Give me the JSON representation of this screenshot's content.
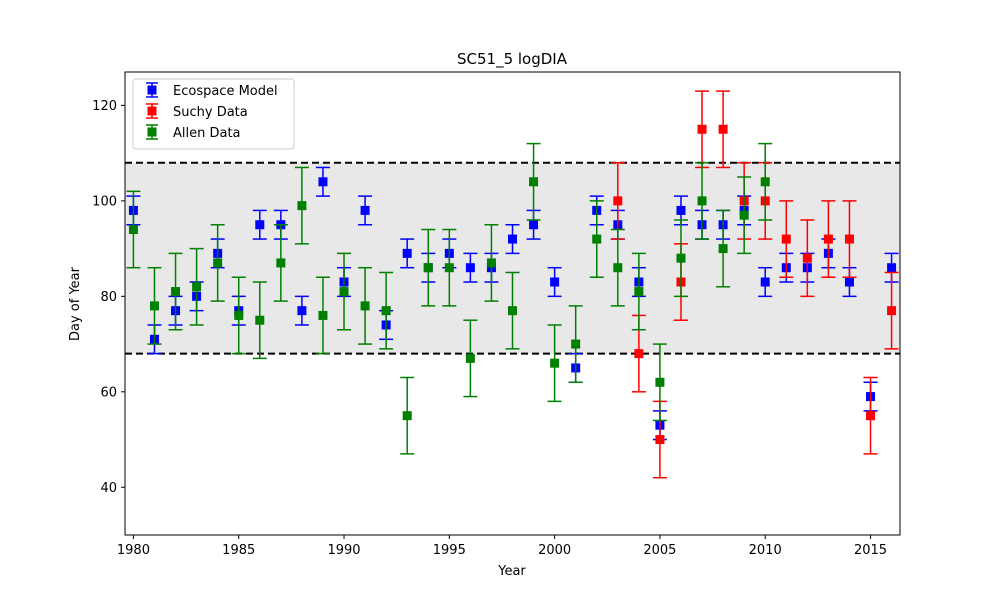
{
  "chart_data": {
    "type": "scatter",
    "title": "SC51_5 logDIA",
    "xlabel": "Year",
    "ylabel": "Day of Year",
    "xlim": [
      1979.6,
      2016.4
    ],
    "ylim": [
      30,
      127
    ],
    "xticks": [
      1980,
      1985,
      1990,
      1995,
      2000,
      2005,
      2010,
      2015
    ],
    "yticks": [
      40,
      60,
      80,
      100,
      120
    ],
    "band": {
      "low": 68,
      "high": 108,
      "color": "#e8e8e8"
    },
    "legend": {
      "position": "top-left"
    },
    "series": [
      {
        "name": "Ecospace Model",
        "color": "#0000ff",
        "points": [
          {
            "x": 1980,
            "y": 98,
            "err": 3
          },
          {
            "x": 1981,
            "y": 71,
            "err": 3
          },
          {
            "x": 1982,
            "y": 77,
            "err": 3
          },
          {
            "x": 1983,
            "y": 80,
            "err": 3
          },
          {
            "x": 1984,
            "y": 89,
            "err": 3
          },
          {
            "x": 1985,
            "y": 77,
            "err": 3
          },
          {
            "x": 1986,
            "y": 95,
            "err": 3
          },
          {
            "x": 1987,
            "y": 95,
            "err": 3
          },
          {
            "x": 1988,
            "y": 77,
            "err": 3
          },
          {
            "x": 1989,
            "y": 104,
            "err": 3
          },
          {
            "x": 1990,
            "y": 83,
            "err": 3
          },
          {
            "x": 1991,
            "y": 98,
            "err": 3
          },
          {
            "x": 1992,
            "y": 74,
            "err": 3
          },
          {
            "x": 1993,
            "y": 89,
            "err": 3
          },
          {
            "x": 1994,
            "y": 86,
            "err": 3
          },
          {
            "x": 1995,
            "y": 89,
            "err": 3
          },
          {
            "x": 1996,
            "y": 86,
            "err": 3
          },
          {
            "x": 1997,
            "y": 86,
            "err": 3
          },
          {
            "x": 1998,
            "y": 92,
            "err": 3
          },
          {
            "x": 1999,
            "y": 95,
            "err": 3
          },
          {
            "x": 2000,
            "y": 83,
            "err": 3
          },
          {
            "x": 2001,
            "y": 65,
            "err": 3
          },
          {
            "x": 2002,
            "y": 98,
            "err": 3
          },
          {
            "x": 2003,
            "y": 95,
            "err": 3
          },
          {
            "x": 2004,
            "y": 83,
            "err": 3
          },
          {
            "x": 2005,
            "y": 53,
            "err": 3
          },
          {
            "x": 2006,
            "y": 98,
            "err": 3
          },
          {
            "x": 2007,
            "y": 95,
            "err": 3
          },
          {
            "x": 2008,
            "y": 95,
            "err": 3
          },
          {
            "x": 2009,
            "y": 98,
            "err": 3
          },
          {
            "x": 2010,
            "y": 83,
            "err": 3
          },
          {
            "x": 2011,
            "y": 86,
            "err": 3
          },
          {
            "x": 2012,
            "y": 86,
            "err": 3
          },
          {
            "x": 2013,
            "y": 89,
            "err": 3
          },
          {
            "x": 2014,
            "y": 83,
            "err": 3
          },
          {
            "x": 2015,
            "y": 59,
            "err": 3
          },
          {
            "x": 2016,
            "y": 86,
            "err": 3
          }
        ]
      },
      {
        "name": "Suchy Data",
        "color": "#ff0000",
        "points": [
          {
            "x": 2003,
            "y": 100,
            "err": 8
          },
          {
            "x": 2004,
            "y": 68,
            "err": 8
          },
          {
            "x": 2005,
            "y": 50,
            "err": 8
          },
          {
            "x": 2006,
            "y": 83,
            "err": 8
          },
          {
            "x": 2007,
            "y": 115,
            "err": 8
          },
          {
            "x": 2008,
            "y": 115,
            "err": 8
          },
          {
            "x": 2009,
            "y": 100,
            "err": 8
          },
          {
            "x": 2010,
            "y": 100,
            "err": 8
          },
          {
            "x": 2011,
            "y": 92,
            "err": 8
          },
          {
            "x": 2012,
            "y": 88,
            "err": 8
          },
          {
            "x": 2013,
            "y": 92,
            "err": 8
          },
          {
            "x": 2014,
            "y": 92,
            "err": 8
          },
          {
            "x": 2015,
            "y": 55,
            "err": 8
          },
          {
            "x": 2016,
            "y": 77,
            "err": 8
          }
        ]
      },
      {
        "name": "Allen Data",
        "color": "#008000",
        "points": [
          {
            "x": 1980,
            "y": 94,
            "err": 8
          },
          {
            "x": 1981,
            "y": 78,
            "err": 8
          },
          {
            "x": 1982,
            "y": 81,
            "err": 8
          },
          {
            "x": 1983,
            "y": 82,
            "err": 8
          },
          {
            "x": 1984,
            "y": 87,
            "err": 8
          },
          {
            "x": 1985,
            "y": 76,
            "err": 8
          },
          {
            "x": 1986,
            "y": 75,
            "err": 8
          },
          {
            "x": 1987,
            "y": 87,
            "err": 8
          },
          {
            "x": 1988,
            "y": 99,
            "err": 8
          },
          {
            "x": 1989,
            "y": 76,
            "err": 8
          },
          {
            "x": 1990,
            "y": 81,
            "err": 8
          },
          {
            "x": 1991,
            "y": 78,
            "err": 8
          },
          {
            "x": 1992,
            "y": 77,
            "err": 8
          },
          {
            "x": 1993,
            "y": 55,
            "err": 8
          },
          {
            "x": 1994,
            "y": 86,
            "err": 8
          },
          {
            "x": 1995,
            "y": 86,
            "err": 8
          },
          {
            "x": 1996,
            "y": 67,
            "err": 8
          },
          {
            "x": 1997,
            "y": 87,
            "err": 8
          },
          {
            "x": 1998,
            "y": 77,
            "err": 8
          },
          {
            "x": 1999,
            "y": 104,
            "err": 8
          },
          {
            "x": 2000,
            "y": 66,
            "err": 8
          },
          {
            "x": 2001,
            "y": 70,
            "err": 8
          },
          {
            "x": 2002,
            "y": 92,
            "err": 8
          },
          {
            "x": 2003,
            "y": 86,
            "err": 8
          },
          {
            "x": 2004,
            "y": 81,
            "err": 8
          },
          {
            "x": 2005,
            "y": 62,
            "err": 8
          },
          {
            "x": 2006,
            "y": 88,
            "err": 8
          },
          {
            "x": 2007,
            "y": 100,
            "err": 8
          },
          {
            "x": 2008,
            "y": 90,
            "err": 8
          },
          {
            "x": 2009,
            "y": 97,
            "err": 8
          },
          {
            "x": 2010,
            "y": 104,
            "err": 8
          }
        ]
      }
    ]
  }
}
